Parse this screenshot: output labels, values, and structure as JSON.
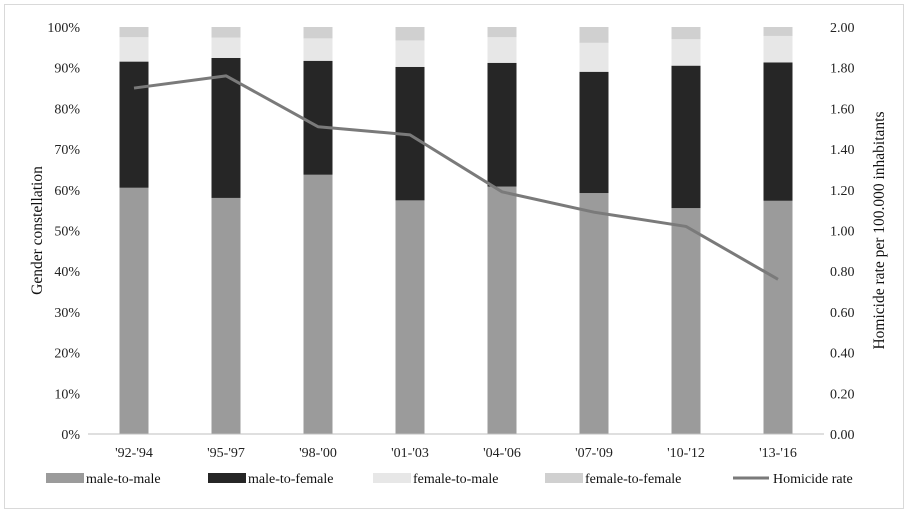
{
  "chart_data": {
    "type": "bar",
    "stacked": true,
    "categories": [
      "'92-'94",
      "'95-'97",
      "'98-'00",
      "'01-'03",
      "'04-'06",
      "'07-'09",
      "'10-'12",
      "'13-'16"
    ],
    "series": [
      {
        "name": "male-to-male",
        "color": "#9b9b9b",
        "values": [
          60.5,
          58.0,
          63.7,
          57.4,
          60.8,
          59.2,
          55.5,
          57.3
        ]
      },
      {
        "name": "male-to-female",
        "color": "#262626",
        "values": [
          31.0,
          34.4,
          28.0,
          32.8,
          30.4,
          29.8,
          35.0,
          34.0
        ]
      },
      {
        "name": "female-to-male",
        "color": "#e7e7e7",
        "values": [
          6.0,
          5.0,
          5.5,
          6.5,
          6.3,
          7.1,
          6.5,
          6.5
        ]
      },
      {
        "name": "female-to-female",
        "color": "#d0d0d0",
        "values": [
          2.5,
          2.6,
          2.8,
          3.3,
          2.5,
          3.9,
          3.0,
          2.2
        ]
      }
    ],
    "line_series": {
      "name": "Homicide rate",
      "color": "#7a7a7a",
      "axis": "right",
      "values": [
        1.7,
        1.76,
        1.51,
        1.47,
        1.19,
        1.09,
        1.02,
        0.76
      ]
    },
    "ylabel": "Gender constellation",
    "y2label": "Homicide rate per 100.000 inhabitants",
    "ylim": [
      0,
      100
    ],
    "y2lim": [
      0,
      2
    ],
    "yticks": [
      "0%",
      "10%",
      "20%",
      "30%",
      "40%",
      "50%",
      "60%",
      "70%",
      "80%",
      "90%",
      "100%"
    ],
    "y2ticks": [
      "0.00",
      "0.20",
      "0.40",
      "0.60",
      "0.80",
      "1.00",
      "1.20",
      "1.40",
      "1.60",
      "1.80",
      "2.00"
    ],
    "grid": false,
    "legend": "bottom"
  }
}
